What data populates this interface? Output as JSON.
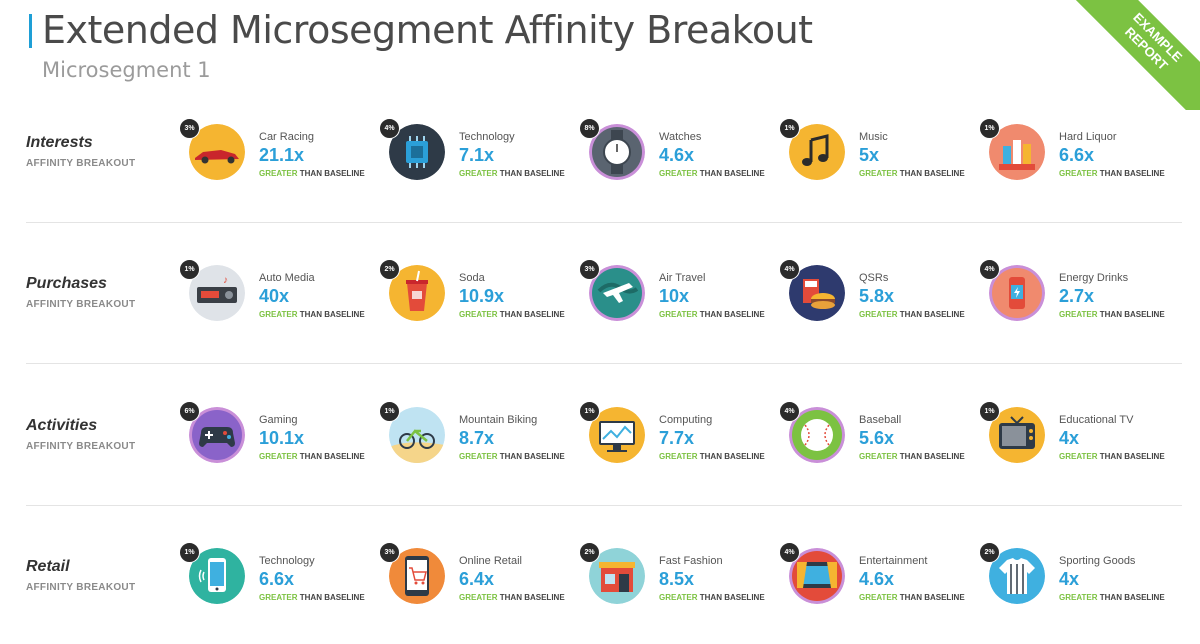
{
  "header": {
    "title": "Extended Microsegment Affinity Breakout",
    "subtitle": "Microsegment 1",
    "ribbon_line1": "EXAMPLE",
    "ribbon_line2": "REPORT"
  },
  "caption": {
    "greater": "GREATER",
    "than_baseline": "THAN BASELINE"
  },
  "colors": {
    "accent": "#1e9fd6",
    "value": "#2b9fd8",
    "green": "#7cc242"
  },
  "categories": [
    {
      "name": "Interests",
      "sub": "AFFINITY BREAKOUT",
      "items": [
        {
          "label": "Car Racing",
          "value": "21.1x",
          "pct": "3%",
          "icon": "race-car-icon"
        },
        {
          "label": "Technology",
          "value": "7.1x",
          "pct": "4%",
          "icon": "chip-icon"
        },
        {
          "label": "Watches",
          "value": "4.6x",
          "pct": "8%",
          "icon": "watch-icon"
        },
        {
          "label": "Music",
          "value": "5x",
          "pct": "1%",
          "icon": "music-note-icon"
        },
        {
          "label": "Hard Liquor",
          "value": "6.6x",
          "pct": "1%",
          "icon": "liquor-bottles-icon"
        }
      ]
    },
    {
      "name": "Purchases",
      "sub": "AFFINITY BREAKOUT",
      "items": [
        {
          "label": "Auto Media",
          "value": "40x",
          "pct": "1%",
          "icon": "car-radio-icon"
        },
        {
          "label": "Soda",
          "value": "10.9x",
          "pct": "2%",
          "icon": "soda-cup-icon"
        },
        {
          "label": "Air Travel",
          "value": "10x",
          "pct": "3%",
          "icon": "airplane-globe-icon"
        },
        {
          "label": "QSRs",
          "value": "5.8x",
          "pct": "4%",
          "icon": "fast-food-icon"
        },
        {
          "label": "Energy Drinks",
          "value": "2.7x",
          "pct": "4%",
          "icon": "energy-can-icon"
        }
      ]
    },
    {
      "name": "Activities",
      "sub": "AFFINITY BREAKOUT",
      "items": [
        {
          "label": "Gaming",
          "value": "10.1x",
          "pct": "6%",
          "icon": "gamepad-icon"
        },
        {
          "label": "Mountain Biking",
          "value": "8.7x",
          "pct": "1%",
          "icon": "bicycle-icon"
        },
        {
          "label": "Computing",
          "value": "7.7x",
          "pct": "1%",
          "icon": "monitor-icon"
        },
        {
          "label": "Baseball",
          "value": "5.6x",
          "pct": "4%",
          "icon": "baseball-icon"
        },
        {
          "label": "Educational TV",
          "value": "4x",
          "pct": "1%",
          "icon": "television-icon"
        }
      ]
    },
    {
      "name": "Retail",
      "sub": "AFFINITY BREAKOUT",
      "items": [
        {
          "label": "Technology",
          "value": "6.6x",
          "pct": "1%",
          "icon": "smartphone-icon"
        },
        {
          "label": "Online Retail",
          "value": "6.4x",
          "pct": "3%",
          "icon": "shopping-cart-icon"
        },
        {
          "label": "Fast Fashion",
          "value": "8.5x",
          "pct": "2%",
          "icon": "storefront-icon"
        },
        {
          "label": "Entertainment",
          "value": "4.6x",
          "pct": "4%",
          "icon": "stage-icon"
        },
        {
          "label": "Sporting Goods",
          "value": "4x",
          "pct": "2%",
          "icon": "jersey-icon"
        }
      ]
    }
  ]
}
